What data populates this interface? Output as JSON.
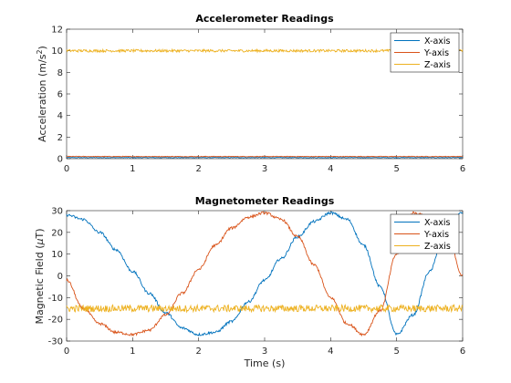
{
  "chart_data": [
    {
      "type": "line",
      "title": "Accelerometer Readings",
      "xlabel": "",
      "ylabel": "Acceleration (m/s",
      "ylabel_sup": "2",
      "ylabel_end": ")",
      "xlim": [
        0,
        6
      ],
      "ylim": [
        0,
        12
      ],
      "xticks": [
        0,
        1,
        2,
        3,
        4,
        5,
        6
      ],
      "yticks": [
        0,
        2,
        4,
        6,
        8,
        10,
        12
      ],
      "legend_position": "top-right",
      "grid": false,
      "series": [
        {
          "name": "X-axis",
          "color": "#0072BD",
          "x": [
            0,
            1,
            2,
            3,
            4,
            5,
            6
          ],
          "y": [
            0.1,
            0.1,
            0.1,
            0.1,
            0.1,
            0.1,
            0.1
          ]
        },
        {
          "name": "Y-axis",
          "color": "#D95319",
          "x": [
            0,
            1,
            2,
            3,
            4,
            5,
            6
          ],
          "y": [
            0.2,
            0.2,
            0.2,
            0.2,
            0.2,
            0.2,
            0.2
          ]
        },
        {
          "name": "Z-axis",
          "color": "#EDB120",
          "x": [
            0,
            1,
            2,
            3,
            4,
            5,
            6
          ],
          "y": [
            10.0,
            10.0,
            10.0,
            10.0,
            10.0,
            10.0,
            10.0
          ]
        }
      ]
    },
    {
      "type": "line",
      "title": "Magnetometer Readings",
      "xlabel": "Time (s)",
      "ylabel": "Magnetic Field (",
      "ylabel_sym": "μ",
      "ylabel_end": "T)",
      "xlim": [
        0,
        6
      ],
      "ylim": [
        -30,
        30
      ],
      "xticks": [
        0,
        1,
        2,
        3,
        4,
        5,
        6
      ],
      "yticks": [
        -30,
        -20,
        -10,
        0,
        10,
        20,
        30
      ],
      "legend_position": "top-right",
      "grid": false,
      "series": [
        {
          "name": "X-axis",
          "color": "#0072BD",
          "x": [
            0,
            0.25,
            0.5,
            0.75,
            1.0,
            1.25,
            1.5,
            1.75,
            2.0,
            2.25,
            2.5,
            2.75,
            3.0,
            3.25,
            3.5,
            3.75,
            4.0,
            4.25,
            4.5,
            4.75,
            5.0,
            5.25,
            5.5,
            5.75,
            6.0
          ],
          "y": [
            28,
            26,
            20,
            12,
            2,
            -8,
            -17,
            -24,
            -27,
            -26,
            -21,
            -12,
            -2,
            8,
            18,
            25,
            29,
            26,
            14,
            -5,
            -27,
            -18,
            2,
            24,
            29
          ]
        },
        {
          "name": "Y-axis",
          "color": "#D95319",
          "x": [
            0,
            0.25,
            0.5,
            0.75,
            1.0,
            1.25,
            1.5,
            1.75,
            2.0,
            2.25,
            2.5,
            2.75,
            3.0,
            3.25,
            3.5,
            3.75,
            4.0,
            4.25,
            4.5,
            4.75,
            5.0,
            5.25,
            5.5,
            5.75,
            6.0
          ],
          "y": [
            -2,
            -15,
            -22,
            -26,
            -27,
            -25,
            -18,
            -8,
            3,
            14,
            22,
            27,
            29,
            26,
            18,
            5,
            -10,
            -22,
            -27,
            -16,
            10,
            29,
            27,
            22,
            0
          ]
        },
        {
          "name": "Z-axis",
          "color": "#EDB120",
          "x": [
            0,
            0.5,
            1.0,
            1.5,
            2.0,
            2.5,
            3.0,
            3.5,
            4.0,
            4.5,
            5.0,
            5.5,
            6.0
          ],
          "y": [
            -15,
            -15,
            -15,
            -15,
            -15,
            -15,
            -15,
            -15,
            -15,
            -15,
            -15,
            -15,
            -15
          ]
        }
      ]
    }
  ]
}
